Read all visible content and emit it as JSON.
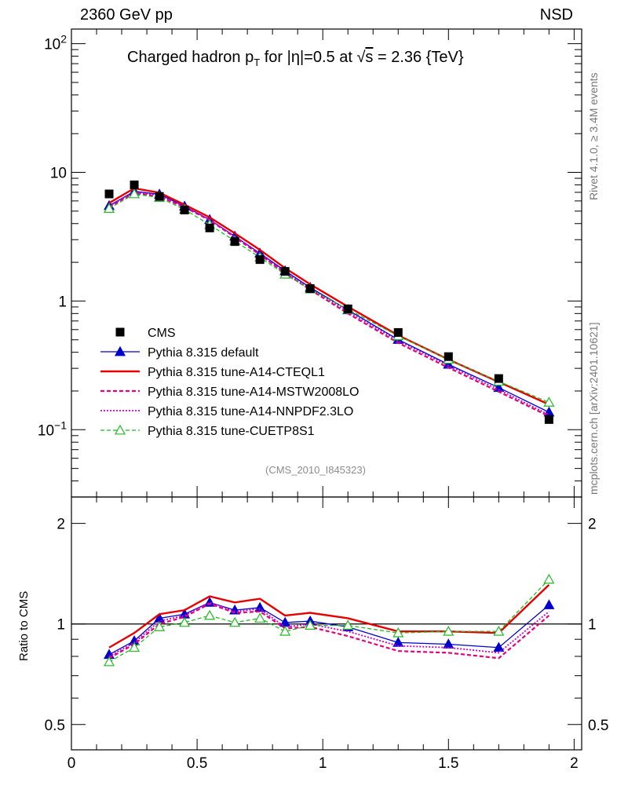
{
  "header": {
    "left": "2360 GeV pp",
    "right": "NSD"
  },
  "side_text": {
    "rivet": "Rivet 4.1.0, ≥ 3.4M events",
    "mcplots": "mcplots.cern.ch [arXiv:2401.10621]"
  },
  "analysis_id": "(CMS_2010_I845323)",
  "colors": {
    "cms": "#000000",
    "default": "#0000cc",
    "a14_cteql1": "#e60000",
    "a14_mstw": "#e6007e",
    "a14_nnpdf": "#cc00cc",
    "cuetp8s1": "#22bb22"
  },
  "chart_data": {
    "type": "line",
    "title": "Charged hadron p_T for |η|=0.5 at √s = 2.36 {TeV}",
    "title_parts": {
      "a": "Charged hadron p",
      "sub": "T",
      "b": " for |η|=0.5 at ",
      "sqrt": "√",
      "s": "s",
      "c": " = 2.36 {TeV}"
    },
    "xlabel": "",
    "ylabel_ratio": "Ratio to CMS",
    "xlim": [
      0,
      2.03
    ],
    "main_ylim": [
      0.03,
      130
    ],
    "ratio_ylim": [
      0.42,
      2.4
    ],
    "main_yscale": "log",
    "ratio_yscale": "log",
    "x_ticks": [
      {
        "v": 0,
        "label": "0"
      },
      {
        "v": 0.5,
        "label": "0.5"
      },
      {
        "v": 1,
        "label": "1"
      },
      {
        "v": 1.5,
        "label": "1.5"
      },
      {
        "v": 2,
        "label": "2"
      }
    ],
    "main_y_ticks": [
      {
        "v": 0.1,
        "base": "10",
        "exp": "−1"
      },
      {
        "v": 1,
        "base": "1",
        "exp": ""
      },
      {
        "v": 10,
        "base": "10",
        "exp": ""
      },
      {
        "v": 100,
        "base": "10",
        "exp": "2"
      }
    ],
    "ratio_y_ticks": [
      {
        "v": 0.5,
        "label": "0.5"
      },
      {
        "v": 1,
        "label": "1"
      },
      {
        "v": 2,
        "label": "2"
      }
    ],
    "x": [
      0.15,
      0.25,
      0.35,
      0.45,
      0.55,
      0.65,
      0.75,
      0.85,
      0.95,
      1.1,
      1.3,
      1.5,
      1.7,
      1.9
    ],
    "data": {
      "name": "CMS",
      "values": [
        6.8,
        8.0,
        6.5,
        5.1,
        3.7,
        2.9,
        2.1,
        1.7,
        1.25,
        0.87,
        0.57,
        0.37,
        0.25,
        0.12
      ]
    },
    "series": [
      {
        "id": "default",
        "name": "Pythia 8.315 default",
        "marker": "triangle-filled",
        "dash": "",
        "ratio": [
          0.81,
          0.89,
          1.04,
          1.07,
          1.16,
          1.1,
          1.12,
          1.01,
          1.02,
          0.98,
          0.88,
          0.87,
          0.85,
          1.14
        ]
      },
      {
        "id": "a14_cteql1",
        "name": "Pythia 8.315 tune-A14-CTEQL1",
        "marker": "none",
        "dash": "",
        "ratio": [
          0.85,
          0.94,
          1.07,
          1.1,
          1.21,
          1.16,
          1.19,
          1.06,
          1.08,
          1.04,
          0.95,
          0.95,
          0.94,
          1.31
        ]
      },
      {
        "id": "a14_mstw",
        "name": "Pythia 8.315 tune-A14-MSTW2008LO",
        "marker": "none",
        "dash": "5,3",
        "ratio": [
          0.79,
          0.87,
          1.0,
          1.05,
          1.15,
          1.08,
          1.09,
          0.97,
          0.98,
          0.92,
          0.83,
          0.82,
          0.79,
          1.06
        ]
      },
      {
        "id": "a14_nnpdf",
        "name": "Pythia 8.315 tune-A14-NNPDF2.3LO",
        "marker": "none",
        "dash": "2,2",
        "ratio": [
          0.8,
          0.88,
          1.02,
          1.06,
          1.16,
          1.09,
          1.11,
          0.98,
          1.0,
          0.95,
          0.86,
          0.85,
          0.82,
          1.09
        ]
      },
      {
        "id": "cuetp8s1",
        "name": "Pythia 8.315 tune-CUETP8S1",
        "marker": "triangle-open",
        "dash": "5,3",
        "ratio": [
          0.77,
          0.85,
          0.98,
          1.01,
          1.06,
          1.01,
          1.04,
          0.95,
          0.99,
          0.99,
          0.94,
          0.95,
          0.95,
          1.36
        ]
      }
    ]
  }
}
